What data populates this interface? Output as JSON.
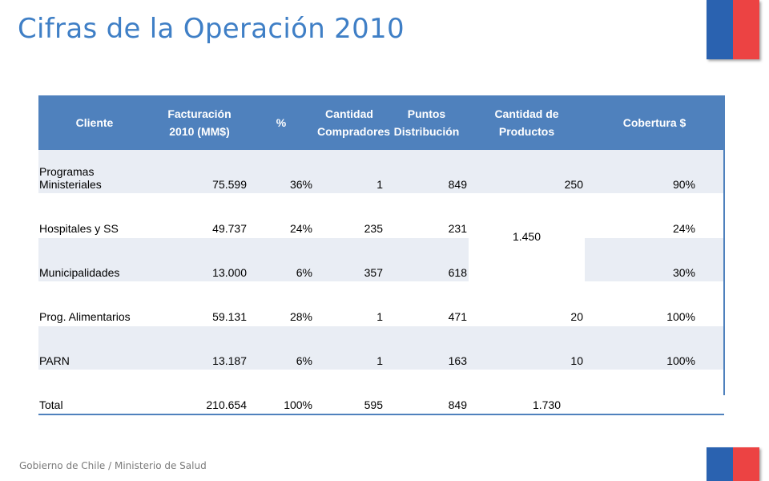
{
  "title": "Cifras de la Operación 2010",
  "footer": "Gobierno de Chile / Ministerio de Salud",
  "colors": {
    "header_bg": "#4f81bd",
    "row_alt": "#e9edf4",
    "title": "#3f7fc6",
    "flag_blue": "#2a62b0",
    "flag_red": "#ec4343"
  },
  "table": {
    "headers": {
      "cliente": "Cliente",
      "facturacion": "Facturación 2010 (MM$)",
      "pct": "%",
      "compradores": "Cantidad Compradores",
      "puntos": "Puntos Distribución",
      "productos": "Cantidad de Productos",
      "cobertura": "Cobertura $"
    },
    "rows": [
      {
        "cliente": "Programas Ministeriales",
        "facturacion": "75.599",
        "pct": "36%",
        "compradores": "1",
        "puntos": "849",
        "productos": "250",
        "cobertura": "90%"
      },
      {
        "cliente": "Hospitales y SS",
        "facturacion": "49.737",
        "pct": "24%",
        "compradores": "235",
        "puntos": "231",
        "productos": "1.450",
        "cobertura": "24%"
      },
      {
        "cliente": "Municipalidades",
        "facturacion": "13.000",
        "pct": "6%",
        "compradores": "357",
        "puntos": "618",
        "cobertura": "30%"
      },
      {
        "cliente": "Prog. Alimentarios",
        "facturacion": "59.131",
        "pct": "28%",
        "compradores": "1",
        "puntos": "471",
        "productos": "20",
        "cobertura": "100%"
      },
      {
        "cliente": "PARN",
        "facturacion": "13.187",
        "pct": "6%",
        "compradores": "1",
        "puntos": "163",
        "productos": "10",
        "cobertura": "100%"
      },
      {
        "cliente": "Total",
        "facturacion": "210.654",
        "pct": "100%",
        "compradores": "595",
        "puntos": "849",
        "productos": "1.730",
        "cobertura": ""
      }
    ]
  }
}
